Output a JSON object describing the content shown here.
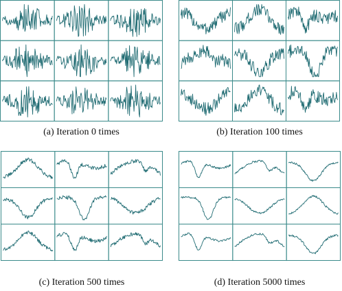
{
  "figure": {
    "panels": [
      {
        "id": "a",
        "caption": "(a) Iteration 0 times"
      },
      {
        "id": "b",
        "caption": "(b) Iteration 100 times"
      },
      {
        "id": "c",
        "caption": "(c) Iteration 500 times"
      },
      {
        "id": "d",
        "caption": "(d) Iteration 5000 times"
      }
    ],
    "grid": {
      "rows": 3,
      "cols": 3
    },
    "colors": {
      "line": "#1f6b72",
      "border": "#3a8a8a"
    }
  }
}
